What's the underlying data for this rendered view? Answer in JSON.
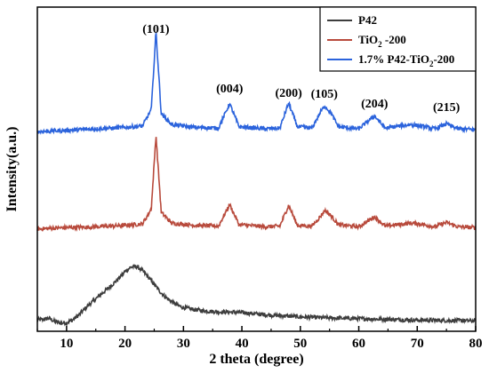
{
  "chart_data": {
    "type": "line",
    "title": "",
    "xlabel": "2 theta (degree)",
    "ylabel": "Intensity(a.u.)",
    "xlim": [
      5,
      80
    ],
    "xticks": [
      10,
      20,
      30,
      40,
      50,
      60,
      70,
      80
    ],
    "xtick_labels": [
      "10",
      "20",
      "30",
      "40",
      "50",
      "60",
      "70",
      "80"
    ],
    "y_tick_labels_shown": false,
    "grid": false,
    "legend_position": "top-right",
    "legend": [
      {
        "prefix": "P42",
        "sub": "",
        "suffix": "",
        "color": "#3d3d3d"
      },
      {
        "prefix": "TiO",
        "sub": "2",
        "suffix": " -200",
        "color": "#b84a3c"
      },
      {
        "prefix": "1.7% P42-TiO",
        "sub": "2",
        "suffix": "-200",
        "color": "#2b63dc"
      }
    ],
    "peak_labels": [
      {
        "text": "(101)",
        "x": 25.3
      },
      {
        "text": "(004)",
        "x": 37.9
      },
      {
        "text": "(200)",
        "x": 48.0
      },
      {
        "text": "(105)",
        "x": 54.1
      },
      {
        "text": "(204)",
        "x": 62.7
      },
      {
        "text": "(215)",
        "x": 75.0
      }
    ],
    "series": [
      {
        "name": "P42",
        "color": "#3d3d3d",
        "points": [
          [
            5,
            0.6
          ],
          [
            6,
            0.62
          ],
          [
            7,
            0.8
          ],
          [
            8,
            0.35
          ],
          [
            9,
            0.15
          ],
          [
            10,
            0.2
          ],
          [
            11,
            0.55
          ],
          [
            12,
            1.2
          ],
          [
            13,
            2.0
          ],
          [
            14,
            2.8
          ],
          [
            15,
            3.5
          ],
          [
            16,
            4.2
          ],
          [
            17,
            4.9
          ],
          [
            18,
            5.6
          ],
          [
            19,
            6.4
          ],
          [
            20,
            7.3
          ],
          [
            21,
            7.9
          ],
          [
            22,
            8.0
          ],
          [
            23,
            7.4
          ],
          [
            24,
            6.5
          ],
          [
            25,
            5.5
          ],
          [
            26,
            4.5
          ],
          [
            27,
            3.7
          ],
          [
            28,
            3.1
          ],
          [
            29,
            2.6
          ],
          [
            30,
            2.3
          ],
          [
            32,
            2.0
          ],
          [
            34,
            1.8
          ],
          [
            36,
            1.7
          ],
          [
            38,
            1.65
          ],
          [
            40,
            1.6
          ],
          [
            42,
            1.45
          ],
          [
            44,
            1.3
          ],
          [
            46,
            1.2
          ],
          [
            48,
            1.1
          ],
          [
            50,
            1.0
          ],
          [
            55,
            0.85
          ],
          [
            60,
            0.75
          ],
          [
            65,
            0.65
          ],
          [
            70,
            0.55
          ],
          [
            75,
            0.5
          ],
          [
            80,
            0.45
          ]
        ]
      },
      {
        "name": "TiO2 -200",
        "color": "#b84a3c",
        "points": [
          [
            5,
            13.2
          ],
          [
            10,
            13.4
          ],
          [
            15,
            13.5
          ],
          [
            20,
            13.7
          ],
          [
            23,
            13.9
          ],
          [
            24.5,
            16.0
          ],
          [
            25.3,
            26.2
          ],
          [
            26.2,
            15.5
          ],
          [
            28,
            14.0
          ],
          [
            32,
            13.7
          ],
          [
            36,
            13.6
          ],
          [
            37.9,
            16.6
          ],
          [
            39.5,
            13.8
          ],
          [
            44,
            13.5
          ],
          [
            46.5,
            13.6
          ],
          [
            48,
            16.5
          ],
          [
            49.5,
            13.7
          ],
          [
            52,
            13.6
          ],
          [
            53.5,
            15.0
          ],
          [
            54.2,
            15.8
          ],
          [
            55.3,
            15.0
          ],
          [
            56.5,
            13.8
          ],
          [
            60,
            13.5
          ],
          [
            62.7,
            14.9
          ],
          [
            64.5,
            13.6
          ],
          [
            68.8,
            14.0
          ],
          [
            70.5,
            13.9
          ],
          [
            73,
            13.5
          ],
          [
            75,
            14.1
          ],
          [
            77,
            13.5
          ],
          [
            80,
            13.4
          ]
        ]
      },
      {
        "name": "1.7% P42-TiO2-200",
        "color": "#2b63dc",
        "points": [
          [
            5,
            26.7
          ],
          [
            10,
            26.9
          ],
          [
            15,
            27.1
          ],
          [
            20,
            27.3
          ],
          [
            23,
            27.5
          ],
          [
            24.5,
            29.8
          ],
          [
            25.3,
            40.6
          ],
          [
            26.2,
            29.2
          ],
          [
            28,
            27.7
          ],
          [
            32,
            27.3
          ],
          [
            36,
            27.2
          ],
          [
            37.9,
            30.6
          ],
          [
            39.5,
            27.4
          ],
          [
            44,
            27.1
          ],
          [
            46.5,
            27.2
          ],
          [
            48,
            30.7
          ],
          [
            49.5,
            27.4
          ],
          [
            52,
            27.2
          ],
          [
            53.5,
            29.5
          ],
          [
            54.2,
            30.3
          ],
          [
            55.3,
            29.2
          ],
          [
            56.5,
            27.4
          ],
          [
            60,
            27.1
          ],
          [
            62.7,
            28.9
          ],
          [
            64.5,
            27.2
          ],
          [
            68.8,
            27.7
          ],
          [
            70.5,
            27.5
          ],
          [
            73,
            27.1
          ],
          [
            75,
            27.8
          ],
          [
            77,
            27.1
          ],
          [
            80,
            27.0
          ]
        ]
      }
    ]
  }
}
